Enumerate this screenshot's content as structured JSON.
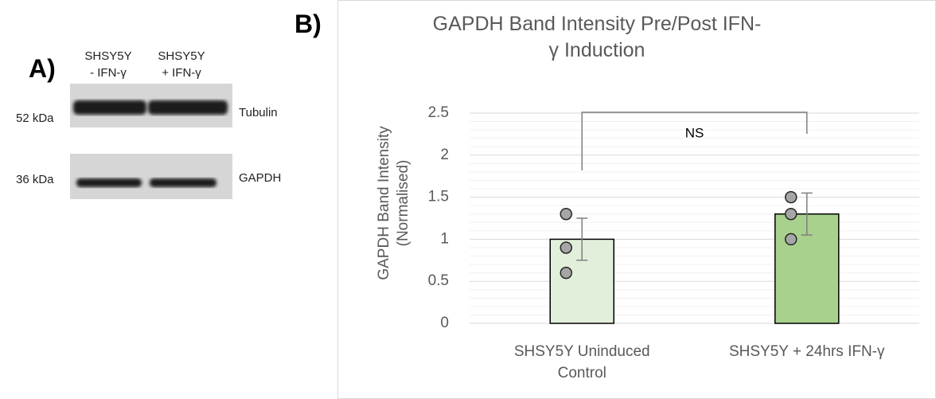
{
  "panel_a": {
    "label": "A)",
    "lanes": [
      {
        "line1": "SHSY5Y",
        "line2": "- IFN-γ"
      },
      {
        "line1": "SHSY5Y",
        "line2": "+ IFN-γ"
      }
    ],
    "markers": [
      {
        "size": "52 kDa",
        "protein": "Tubulin"
      },
      {
        "size": "36 kDa",
        "protein": "GAPDH"
      }
    ]
  },
  "panel_b": {
    "label": "B)"
  },
  "chart_data": {
    "type": "bar",
    "title": "GAPDH Band Intensity Pre/Post IFN-γ Induction",
    "y_label": "GAPDH Band Intensity (Normalised)",
    "categories": [
      "SHSY5Y Uninduced Control",
      "SHSY5Y + 24hrs IFN-γ"
    ],
    "values": [
      1,
      1.3
    ],
    "errors": [
      0.25,
      0.25
    ],
    "colors": [
      "#e2efda",
      "#a9d18e"
    ],
    "points": [
      [
        1.3,
        0.9,
        0.6
      ],
      [
        1.5,
        1.3,
        1.0
      ]
    ],
    "point_color": "#a6a6a6",
    "annotation": "NS",
    "ylim": [
      0,
      2.5
    ],
    "yticks": [
      0,
      0.5,
      1,
      1.5,
      2,
      2.5
    ],
    "grid": true,
    "minor_grid": true
  }
}
